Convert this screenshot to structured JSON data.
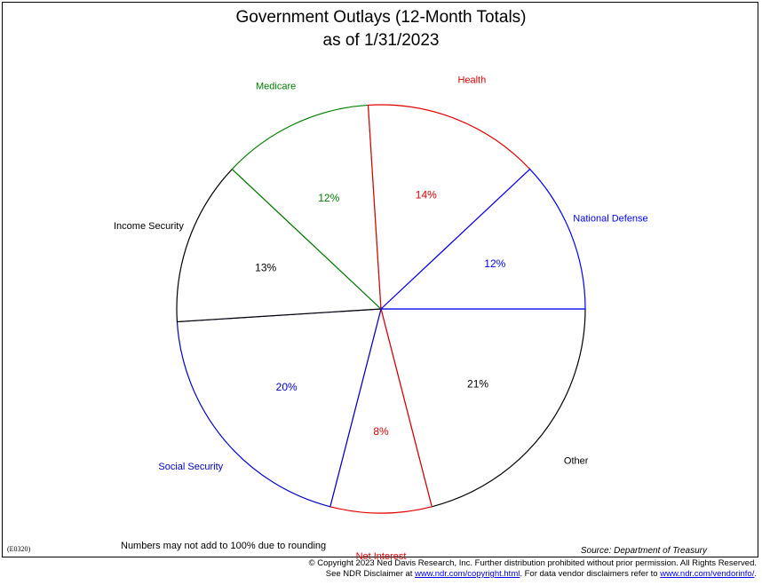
{
  "title_line1": "Government Outlays (12-Month Totals)",
  "title_line2": "as of 1/31/2023",
  "chart_data": {
    "type": "pie",
    "title": "Government Outlays (12-Month Totals) as of 1/31/2023",
    "slices": [
      {
        "label": "Other",
        "value_label": "21%",
        "value": 21,
        "color": "#000000"
      },
      {
        "label": "Net Interest",
        "value_label": "8%",
        "value": 8,
        "color": "#e00000"
      },
      {
        "label": "Social Security",
        "value_label": "20%",
        "value": 20,
        "color": "#0000cc"
      },
      {
        "label": "Income Security",
        "value_label": "13%",
        "value": 13,
        "color": "#000000"
      },
      {
        "label": "Medicare",
        "value_label": "12%",
        "value": 12,
        "color": "#008000"
      },
      {
        "label": "Health",
        "value_label": "14%",
        "value": 14,
        "color": "#e00000"
      },
      {
        "label": "National Defense",
        "value_label": "12%",
        "value": 12,
        "color": "#0000ff"
      }
    ]
  },
  "footer": {
    "code": "(E0320)",
    "note": "Numbers may not add to 100% due to rounding",
    "source": "Source: Department of Treasury",
    "copyright_line1": "© Copyright 2023 Ned Davis Research, Inc.  Further distribution prohibited without prior permission.  All Rights Reserved.",
    "disclaimer_pre": "See NDR Disclaimer at ",
    "disclaimer_link1": "www.ndr.com/copyright.html",
    "disclaimer_mid": ". For data vendor disclaimers refer to ",
    "disclaimer_link2": "www.ndr.com/vendorinfo/",
    "disclaimer_post": "."
  }
}
